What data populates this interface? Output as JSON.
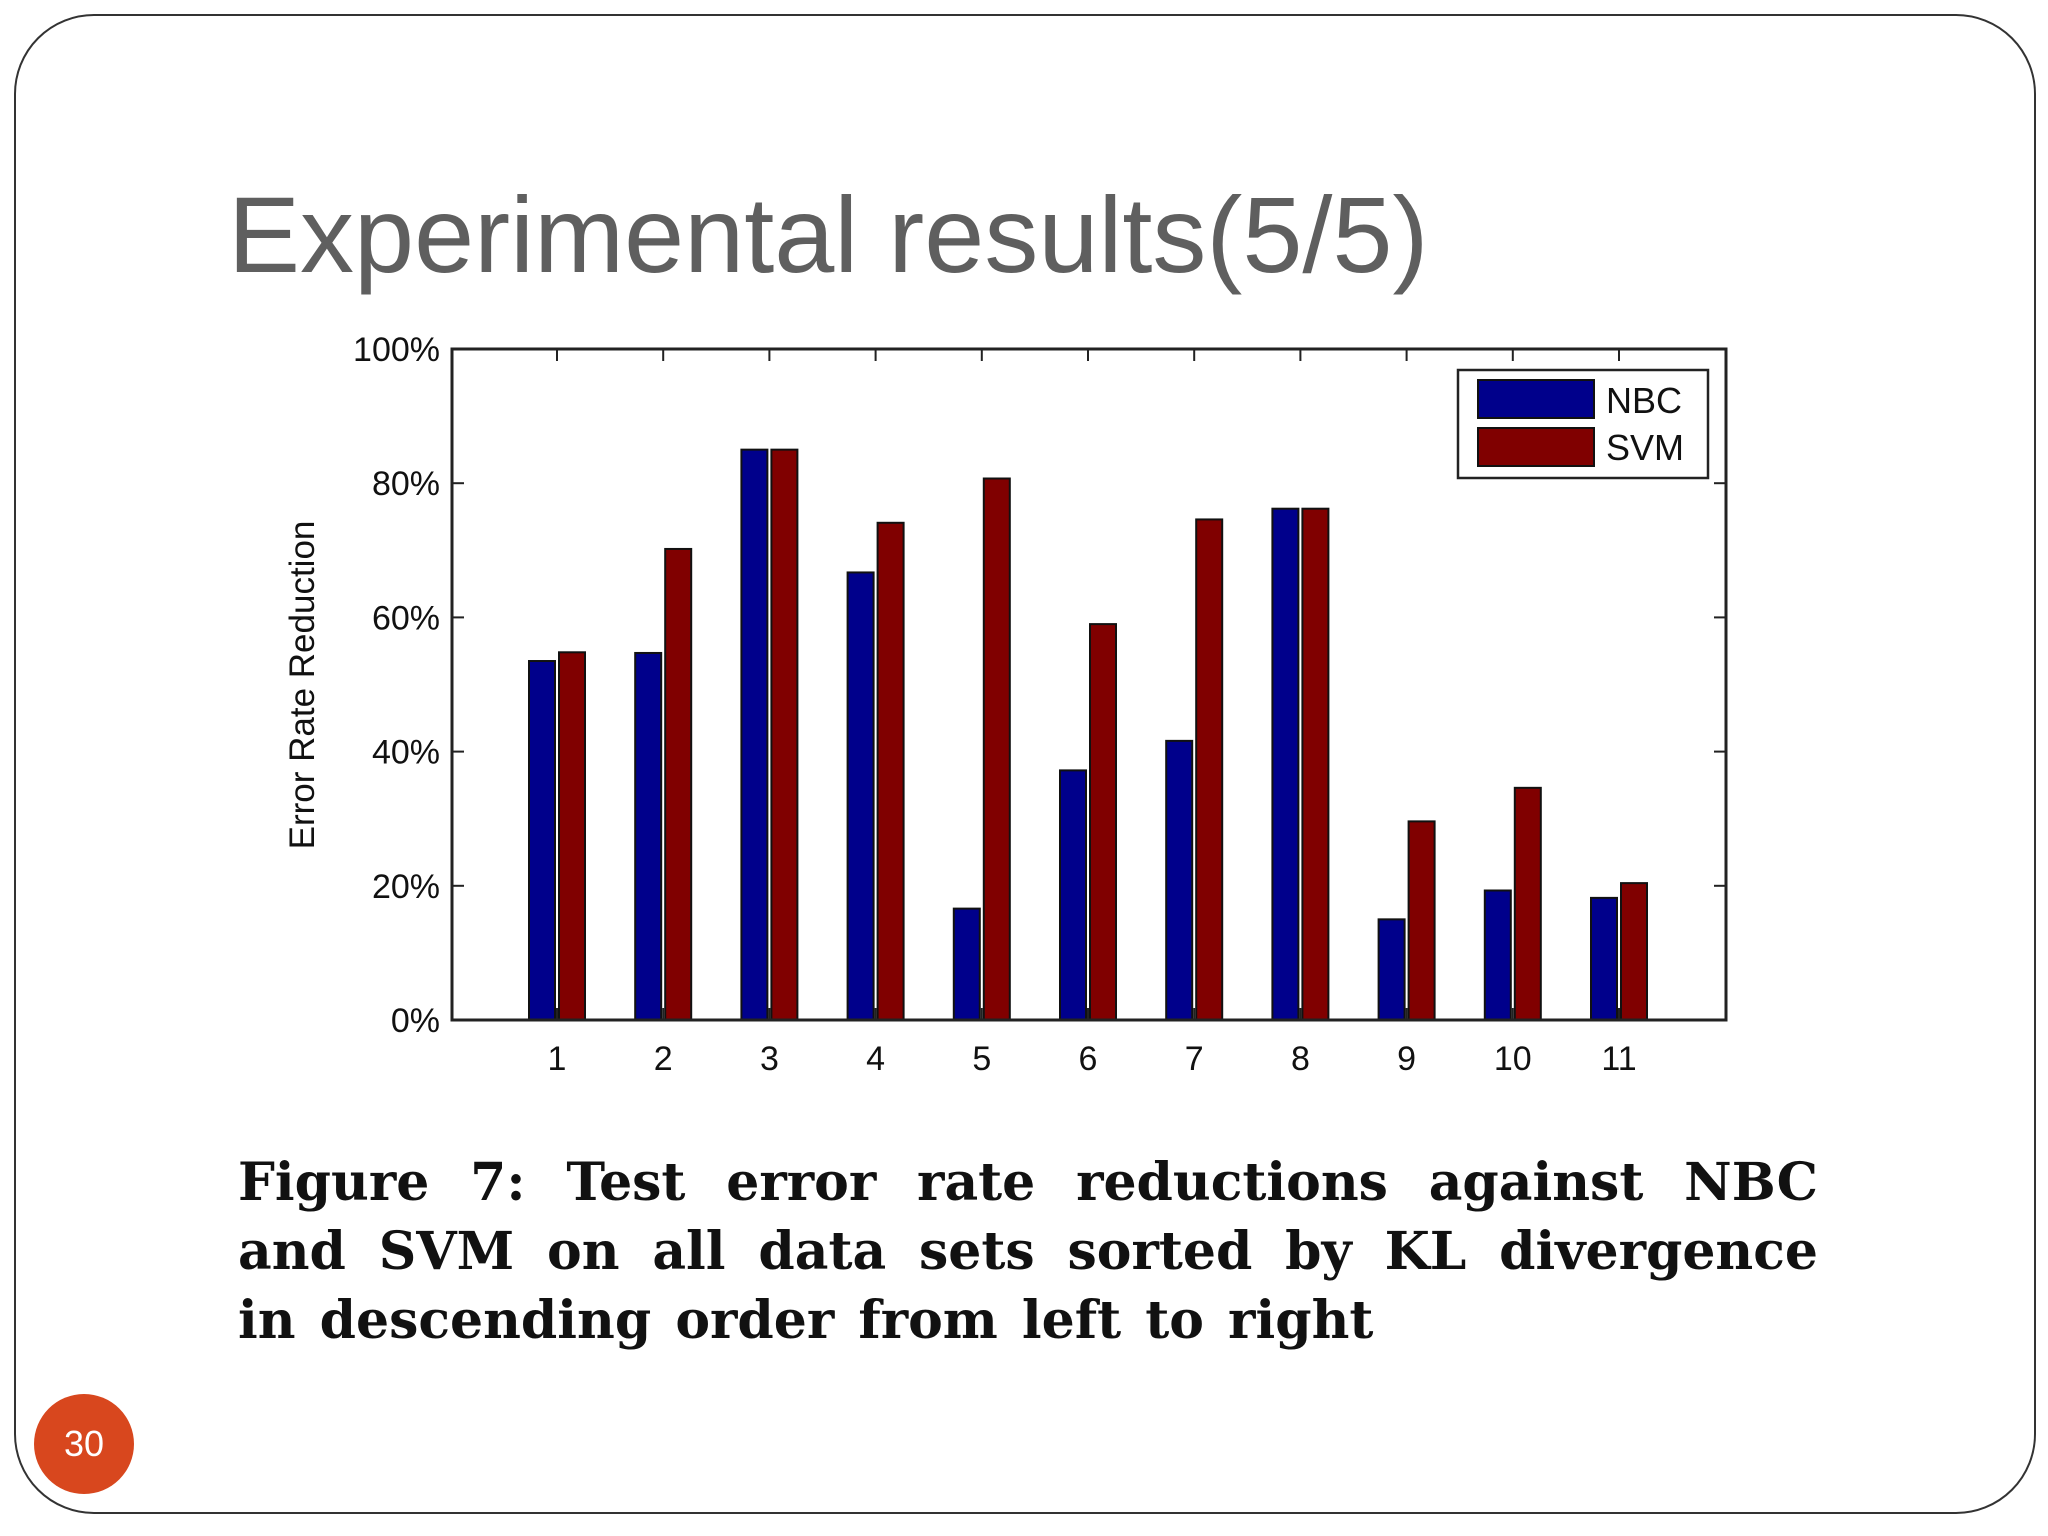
{
  "slide": {
    "title": "Experimental results(5/5)",
    "page_number": "30",
    "caption": "Figure 7: Test error rate reductions against NBC and SVM on all data sets sorted by KL divergence in descending order from left to right"
  },
  "colors": {
    "title": "#5f5f5f",
    "badge": "#d8471e",
    "frame": "#333333"
  },
  "chart_data": {
    "type": "bar",
    "categories": [
      "1",
      "2",
      "3",
      "4",
      "5",
      "6",
      "7",
      "8",
      "9",
      "10",
      "11"
    ],
    "series": [
      {
        "name": "NBC",
        "color": "#00008b",
        "values": [
          53.5,
          54.7,
          85.0,
          66.7,
          16.6,
          37.2,
          41.6,
          76.2,
          15.0,
          19.3,
          18.2
        ]
      },
      {
        "name": "SVM",
        "color": "#800000",
        "values": [
          54.8,
          70.2,
          85.0,
          74.1,
          80.7,
          59.0,
          74.6,
          76.2,
          29.6,
          34.6,
          20.4
        ]
      }
    ],
    "title": "",
    "xlabel": "",
    "ylabel": "Error Rate Reduction",
    "ylim": [
      0,
      100
    ],
    "yticks": [
      "0%",
      "20%",
      "40%",
      "60%",
      "80%",
      "100%"
    ],
    "ytick_values": [
      0,
      20,
      40,
      60,
      80,
      100
    ],
    "grid": false,
    "legend_position": "top-right"
  }
}
